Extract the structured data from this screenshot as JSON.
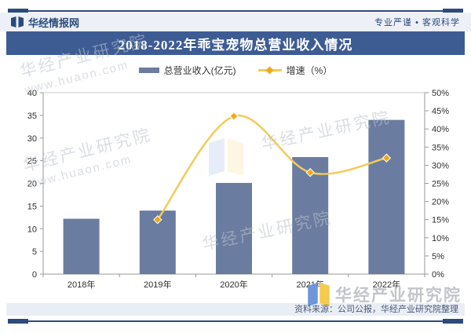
{
  "header": {
    "site": "华经情报网",
    "slogan": "专业严谨 • 客观科学"
  },
  "title": "2018-2022年乖宝宠物总营业收入情况",
  "legend": [
    {
      "label": "总营业收入(亿元)"
    },
    {
      "label": "增速（%）"
    }
  ],
  "chart_data": {
    "type": "bar",
    "categories": [
      "2018年",
      "2019年",
      "2020年",
      "2021年",
      "2022年"
    ],
    "series": [
      {
        "name": "总营业收入(亿元)",
        "type": "bar",
        "axis": "left",
        "values": [
          12.2,
          14,
          20.1,
          25.8,
          34
        ]
      },
      {
        "name": "增速（%）",
        "type": "line",
        "axis": "right",
        "values": [
          null,
          15,
          43.5,
          28,
          32
        ]
      }
    ],
    "left_axis": {
      "min": 0,
      "max": 40,
      "step": 5
    },
    "right_axis": {
      "min": 0,
      "max": 50,
      "step": 5,
      "format": "percent"
    },
    "grid": false,
    "legend_position": "top",
    "title": "2018-2022年乖宝宠物总营业收入情况"
  },
  "colors": {
    "bar": "#6A7CA0",
    "line": "#F3CB56",
    "marker": "#F0A81E",
    "banner": "#3D5C94",
    "header_text": "#2B4A7F",
    "axis": "#9A9A9A",
    "tick_label": "#2E2E2E"
  },
  "watermark": {
    "brand": "华经产业研究院",
    "url": "www.huaon.com"
  },
  "footer": {
    "source": "资料来源：公司公报，华经产业研究院整理"
  }
}
